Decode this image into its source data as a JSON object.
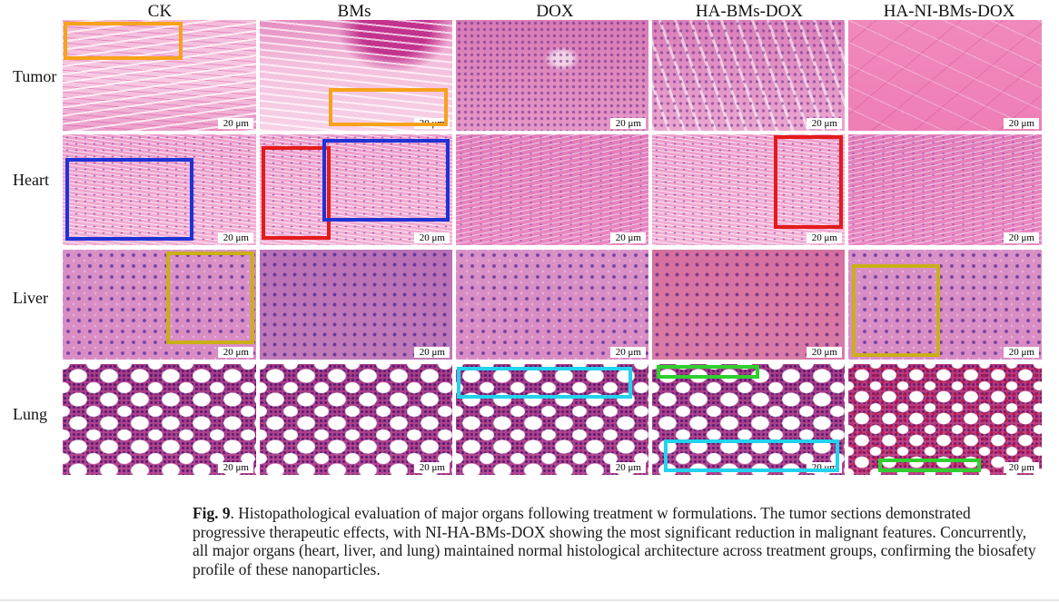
{
  "columns": [
    "CK",
    "BMs",
    "DOX",
    "HA-BMs-DOX",
    "HA-NI-BMs-DOX"
  ],
  "rows": [
    "Tumor",
    "Heart",
    "Liver",
    "Lung"
  ],
  "scale_bar": "20 μm",
  "roi_colors": {
    "orange": "#f7a21b",
    "blue": "#1f32d6",
    "red": "#e31b1b",
    "yellow": "#c9b016",
    "cyan": "#22d3ee",
    "green": "#2fcf2f"
  },
  "caption": {
    "label": "Fig. 9",
    "text": ". Histopathological evaluation of major organs following treatment w formulations. The tumor sections demonstrated progressive therapeutic effects, with NI-HA-BMs-DOX showing the most significant reduction in malignant features. Concurrently, all major organs (heart, liver, and lung) maintained normal histological architecture across treatment groups, confirming the biosafety profile of these nanoparticles."
  }
}
